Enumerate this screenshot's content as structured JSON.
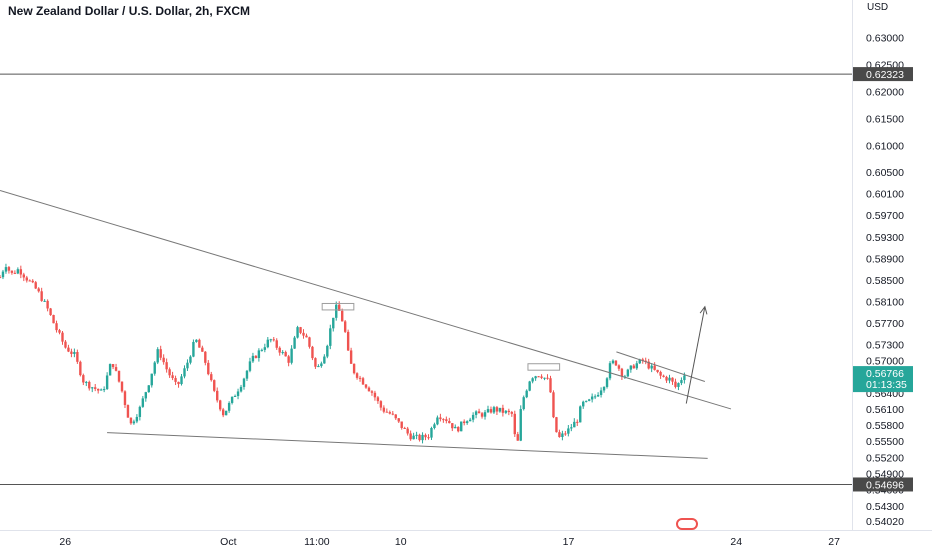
{
  "header": {
    "title": "New Zealand Dollar / U.S. Dollar, 2h, FXCM",
    "currency": "USD"
  },
  "chart_data": {
    "type": "candlestick",
    "symbol": "NZDUSD",
    "timeframe": "2h",
    "y_ticks": [
      "0.63000",
      "0.62500",
      "0.62000",
      "0.61500",
      "0.61000",
      "0.60500",
      "0.60100",
      "0.59700",
      "0.59300",
      "0.58900",
      "0.58500",
      "0.58100",
      "0.57700",
      "0.57300",
      "0.57000",
      "0.56400",
      "0.56100",
      "0.55800",
      "0.55500",
      "0.55200",
      "0.54900",
      "0.54600",
      "0.54300",
      "0.54020"
    ],
    "x_ticks": [
      {
        "label": "26",
        "pos": 0.07
      },
      {
        "label": "Oct",
        "pos": 0.245
      },
      {
        "label": "11:00",
        "pos": 0.34
      },
      {
        "label": "10",
        "pos": 0.43
      },
      {
        "label": "17",
        "pos": 0.61
      },
      {
        "label": "24",
        "pos": 0.79
      },
      {
        "label": "27",
        "pos": 0.895
      }
    ],
    "horizontal_levels": [
      {
        "value": 0.62323,
        "label": "0.62323"
      },
      {
        "value": 0.54696,
        "label": "0.54696"
      }
    ],
    "current_price": {
      "value": 0.56766,
      "label": "0.56766",
      "countdown": "01:13:35",
      "color": "#26a69a"
    },
    "colors": {
      "up": "#26a69a",
      "down": "#ef5350",
      "line": "#777777",
      "level": "#555555"
    },
    "trendlines": [
      {
        "name": "upper-resistance",
        "from": [
          0.0,
          0.6016
        ],
        "to": [
          0.785,
          0.561
        ]
      },
      {
        "name": "lower-support",
        "from": [
          0.115,
          0.5566
        ],
        "to": [
          0.76,
          0.5518
        ]
      },
      {
        "name": "flag-top",
        "from": [
          0.662,
          0.5716
        ],
        "to": [
          0.757,
          0.5661
        ]
      }
    ],
    "projection_arrow": {
      "from": [
        0.737,
        0.562
      ],
      "to": [
        0.757,
        0.58
      ]
    },
    "marker_boxes": [
      {
        "name": "touch-box-1",
        "t": [
          0.346,
          0.38
        ],
        "p": [
          0.5794,
          0.5806
        ]
      },
      {
        "name": "touch-box-2",
        "t": [
          0.567,
          0.601
        ],
        "p": [
          0.5682,
          0.5694
        ]
      }
    ],
    "path": [
      [
        0.0,
        0.5855
      ],
      [
        0.006,
        0.588
      ],
      [
        0.012,
        0.586
      ],
      [
        0.02,
        0.587
      ],
      [
        0.03,
        0.585
      ],
      [
        0.04,
        0.583
      ],
      [
        0.05,
        0.58
      ],
      [
        0.06,
        0.576
      ],
      [
        0.07,
        0.5725
      ],
      [
        0.08,
        0.571
      ],
      [
        0.09,
        0.566
      ],
      [
        0.1,
        0.565
      ],
      [
        0.11,
        0.564
      ],
      [
        0.12,
        0.57
      ],
      [
        0.13,
        0.565
      ],
      [
        0.14,
        0.558
      ],
      [
        0.15,
        0.561
      ],
      [
        0.16,
        0.566
      ],
      [
        0.17,
        0.572
      ],
      [
        0.18,
        0.568
      ],
      [
        0.19,
        0.565
      ],
      [
        0.2,
        0.569
      ],
      [
        0.21,
        0.574
      ],
      [
        0.22,
        0.57
      ],
      [
        0.23,
        0.564
      ],
      [
        0.24,
        0.56
      ],
      [
        0.25,
        0.563
      ],
      [
        0.26,
        0.566
      ],
      [
        0.27,
        0.57
      ],
      [
        0.28,
        0.572
      ],
      [
        0.29,
        0.574
      ],
      [
        0.3,
        0.572
      ],
      [
        0.31,
        0.57
      ],
      [
        0.32,
        0.576
      ],
      [
        0.33,
        0.574
      ],
      [
        0.34,
        0.568
      ],
      [
        0.35,
        0.572
      ],
      [
        0.36,
        0.58
      ],
      [
        0.365,
        0.579
      ],
      [
        0.37,
        0.576
      ],
      [
        0.375,
        0.57
      ],
      [
        0.38,
        0.568
      ],
      [
        0.39,
        0.566
      ],
      [
        0.4,
        0.564
      ],
      [
        0.41,
        0.561
      ],
      [
        0.42,
        0.56
      ],
      [
        0.43,
        0.558
      ],
      [
        0.44,
        0.556
      ],
      [
        0.45,
        0.5555
      ],
      [
        0.46,
        0.556
      ],
      [
        0.47,
        0.56
      ],
      [
        0.48,
        0.559
      ],
      [
        0.49,
        0.557
      ],
      [
        0.5,
        0.559
      ],
      [
        0.51,
        0.56
      ],
      [
        0.52,
        0.56
      ],
      [
        0.53,
        0.561
      ],
      [
        0.54,
        0.5605
      ],
      [
        0.55,
        0.56
      ],
      [
        0.555,
        0.553
      ],
      [
        0.56,
        0.562
      ],
      [
        0.57,
        0.567
      ],
      [
        0.58,
        0.5675
      ],
      [
        0.59,
        0.566
      ],
      [
        0.595,
        0.558
      ],
      [
        0.6,
        0.5555
      ],
      [
        0.61,
        0.557
      ],
      [
        0.62,
        0.559
      ],
      [
        0.625,
        0.562
      ],
      [
        0.63,
        0.562
      ],
      [
        0.64,
        0.5635
      ],
      [
        0.65,
        0.566
      ],
      [
        0.655,
        0.569
      ],
      [
        0.66,
        0.57
      ],
      [
        0.67,
        0.567
      ],
      [
        0.68,
        0.569
      ],
      [
        0.69,
        0.57
      ],
      [
        0.7,
        0.5685
      ],
      [
        0.71,
        0.567
      ],
      [
        0.72,
        0.5665
      ],
      [
        0.725,
        0.565
      ],
      [
        0.73,
        0.566
      ],
      [
        0.735,
        0.5677
      ]
    ],
    "y_domain": [
      0.5385,
      0.637
    ],
    "x_domain": [
      0.0,
      0.915
    ]
  }
}
